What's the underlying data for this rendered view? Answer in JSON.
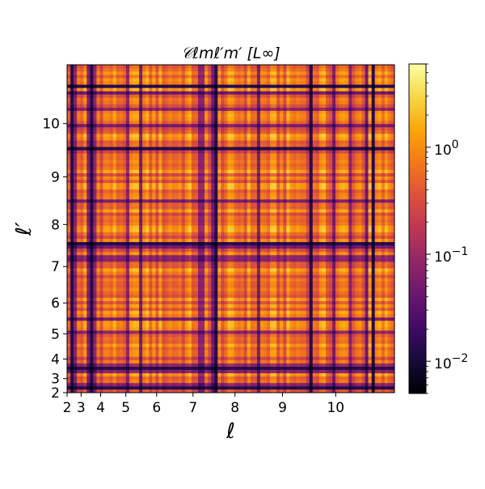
{
  "chart_data": {
    "type": "heatmap",
    "title": "𝒞ℓmℓ′m′ [L∞]",
    "xlabel": "ℓ",
    "ylabel": "ℓ′",
    "x_range": [
      2,
      11
    ],
    "y_range": [
      2,
      11
    ],
    "x_ticks": [
      2,
      3,
      4,
      5,
      6,
      7,
      8,
      9,
      10
    ],
    "x_tick_labels": [
      "2",
      "3",
      "4",
      "5",
      "6",
      "7",
      "8",
      "9",
      "10"
    ],
    "y_ticks": [
      2,
      3,
      4,
      5,
      6,
      7,
      8,
      9,
      10
    ],
    "y_tick_labels": [
      "2",
      "3",
      "4",
      "5",
      "6",
      "7",
      "8",
      "9",
      "10"
    ],
    "axis_scale": "ℓ² (each ℓ block holds 2ℓ+1 m-entries)",
    "colorscale": "inferno",
    "color_scale_type": "log",
    "color_range": [
      0.005,
      6
    ],
    "colorbar_ticks": [
      0.01,
      0.1,
      1
    ],
    "colorbar_tick_labels": [
      "10",
      "10",
      "10"
    ],
    "colorbar_tick_exponents": [
      "−2",
      "−1",
      "0"
    ],
    "grid": false,
    "dark_band_positions_l": [
      2.3,
      3.5,
      7.5,
      9.5,
      10.6
    ],
    "cell_values_description": "Symmetric correlation matrix over (ℓ,m) index pairs for ℓ = 2…10; most entries 0.3–3 (orange/yellow), with near-zero dark rows/columns at specific (ℓ,m) indices."
  }
}
